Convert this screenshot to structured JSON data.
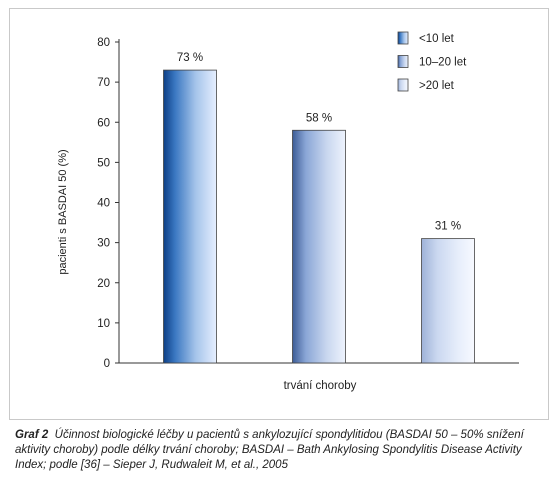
{
  "chart_data": {
    "type": "bar",
    "xlabel": "trvání choroby",
    "ylabel": "pacienti s BASDAI 50 (%)",
    "ylim": [
      0,
      80
    ],
    "yticks": [
      0,
      10,
      20,
      30,
      40,
      50,
      60,
      70,
      80
    ],
    "grid": false,
    "legend_position": "top-right",
    "series": [
      {
        "name": "<10 let",
        "value": 73,
        "label": "73 %",
        "color": "#3f78bd"
      },
      {
        "name": "10–20 let",
        "value": 58,
        "label": "58 %",
        "color": "#9cb4dc"
      },
      {
        "name": ">20 let",
        "value": 31,
        "label": "31 %",
        "color": "#d8e2f4"
      }
    ]
  },
  "caption": {
    "label": "Graf 2",
    "text": "Účinnost biologické léčby u pacientů s ankylozující spondylitidou (BASDAI 50 – 50% snížení aktivity choroby) podle délky trvání choroby; BASDAI – Bath Ankylosing Spondylitis Disease Activity Index; podle [36] – Sieper J, Rudwaleit M, et al., 2005"
  }
}
